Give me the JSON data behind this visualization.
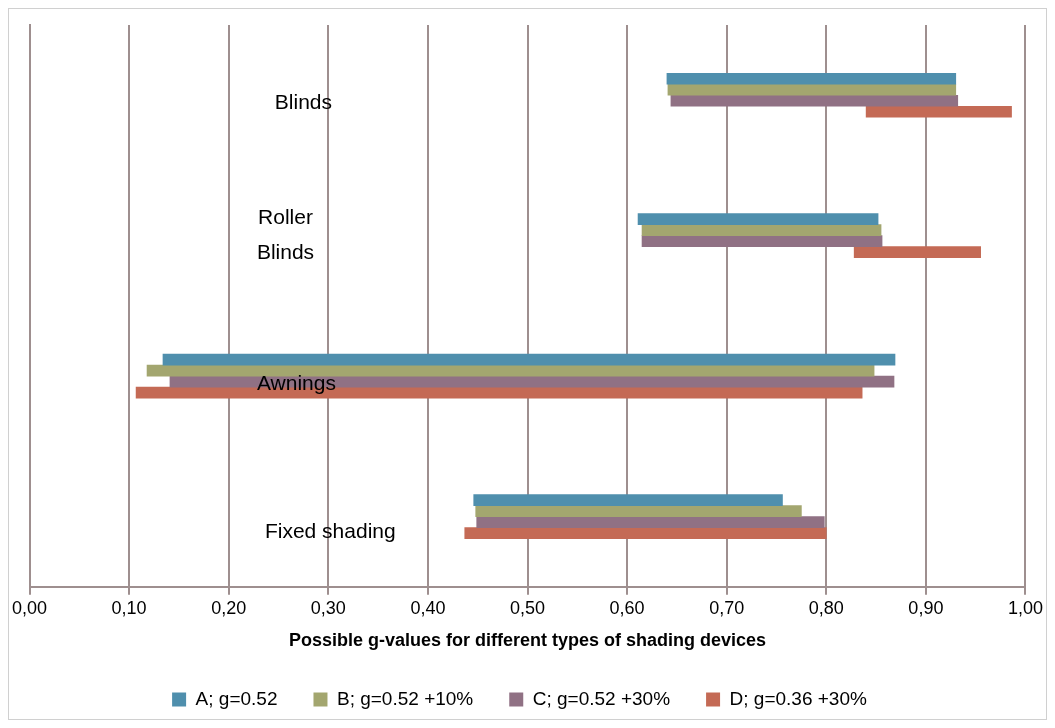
{
  "chart_data": {
    "type": "bar",
    "orientation": "horizontal",
    "xlabel": "Possible g-values for different types of shading devices",
    "categories": [
      "Blinds",
      "Roller Blinds",
      "Awnings",
      "Fixed shading"
    ],
    "series": [
      {
        "name": "A; g=0.52",
        "color": "#4f8fad",
        "base": [
          0.64,
          0.611,
          0.134,
          0.446
        ],
        "values": [
          0.29,
          0.241,
          0.735,
          0.31
        ]
      },
      {
        "name": "B; g=0.52 +10%",
        "color": "#a3a66f",
        "base": [
          0.641,
          0.615,
          0.118,
          0.448
        ],
        "values": [
          0.289,
          0.24,
          0.73,
          0.327
        ]
      },
      {
        "name": "C; g=0.52 +30%",
        "color": "#907184",
        "base": [
          0.644,
          0.615,
          0.141,
          0.449
        ],
        "values": [
          0.288,
          0.241,
          0.727,
          0.349
        ]
      },
      {
        "name": "D; g=0.36 +30%",
        "color": "#c46a55",
        "base": [
          0.84,
          0.828,
          0.107,
          0.437
        ],
        "values": [
          0.146,
          0.127,
          0.729,
          0.363
        ]
      }
    ],
    "xlim": [
      0,
      1
    ],
    "xticks": [
      {
        "value": 0,
        "label": "0,00"
      },
      {
        "value": 0.1,
        "label": "0,10"
      },
      {
        "value": 0.2,
        "label": "0,20"
      },
      {
        "value": 0.3,
        "label": "0,30"
      },
      {
        "value": 0.4,
        "label": "0,40"
      },
      {
        "value": 0.5,
        "label": "0,50"
      },
      {
        "value": 0.6,
        "label": "0,60"
      },
      {
        "value": 0.7,
        "label": "0,70"
      },
      {
        "value": 0.8,
        "label": "0,80"
      },
      {
        "value": 0.9,
        "label": "0,90"
      },
      {
        "value": 1,
        "label": "1,00"
      }
    ],
    "grid": "x",
    "legend": "bottom",
    "tick_labels": "x"
  }
}
